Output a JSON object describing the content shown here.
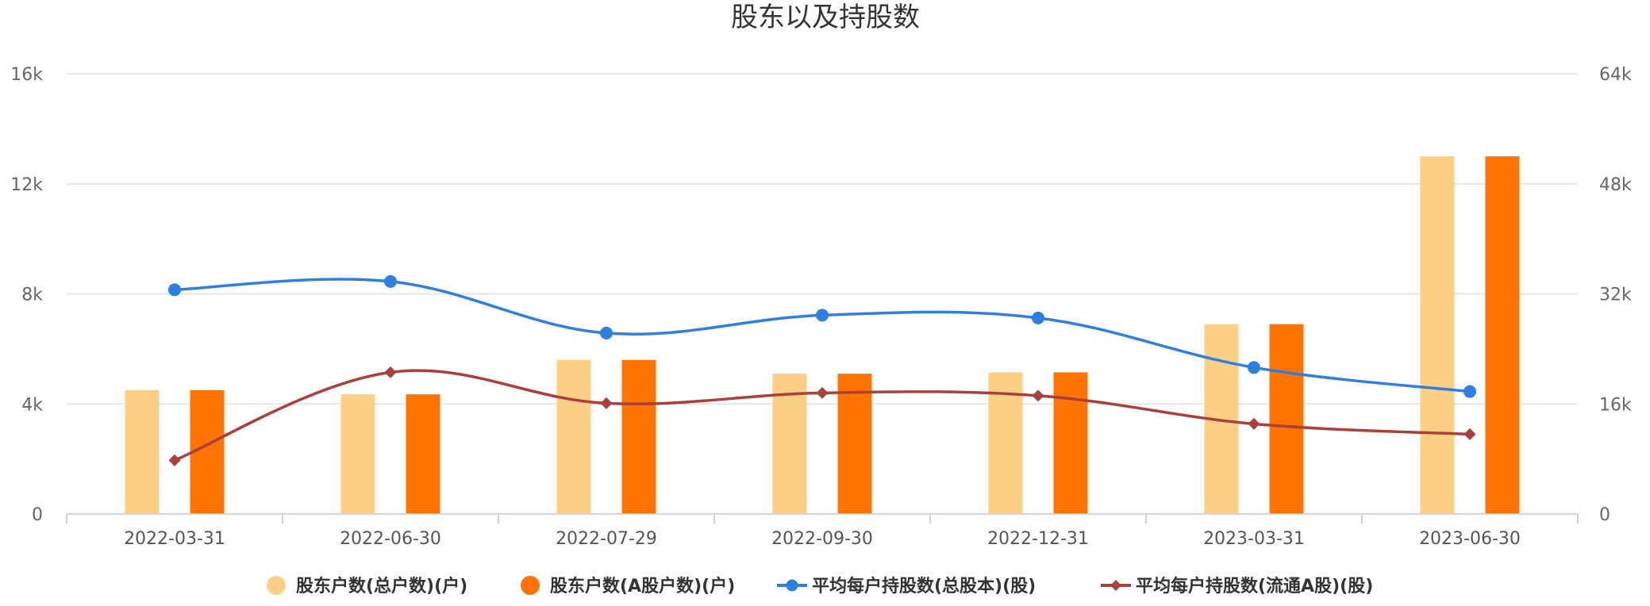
{
  "chart_data": {
    "type": "bar",
    "title": "股东以及持股数",
    "categories": [
      "2022-03-31",
      "2022-06-30",
      "2022-07-29",
      "2022-09-30",
      "2022-12-31",
      "2023-03-31",
      "2023-06-30"
    ],
    "y_left": {
      "ticks": [
        "0",
        "4k",
        "8k",
        "12k",
        "16k"
      ],
      "min": 0,
      "max": 16000
    },
    "y_right": {
      "ticks": [
        "0",
        "16k",
        "32k",
        "48k",
        "64k"
      ],
      "min": 0,
      "max": 64000
    },
    "grid": true,
    "legend_position": "bottom",
    "series": [
      {
        "name": "股东户数(总户数)(户)",
        "type": "bar",
        "axis": "left",
        "color": "#FBCF85",
        "values": [
          4500,
          4350,
          5600,
          5100,
          5150,
          6900,
          13000
        ]
      },
      {
        "name": "股东户数(A股户数)(户)",
        "type": "bar",
        "axis": "left",
        "color": "#FF7300",
        "values": [
          4500,
          4350,
          5600,
          5100,
          5150,
          6900,
          13000
        ]
      },
      {
        "name": "平均每户持股数(总股本)(股)",
        "type": "line",
        "axis": "right",
        "color": "#2F7FE0",
        "marker": "circle",
        "values": [
          32600,
          33800,
          26300,
          28900,
          28500,
          21300,
          17800
        ]
      },
      {
        "name": "平均每户持股数(流通A股)(股)",
        "type": "line",
        "axis": "right",
        "color": "#A9403A",
        "marker": "diamond",
        "values": [
          7800,
          20600,
          16100,
          17600,
          17200,
          13100,
          11600
        ]
      }
    ]
  }
}
